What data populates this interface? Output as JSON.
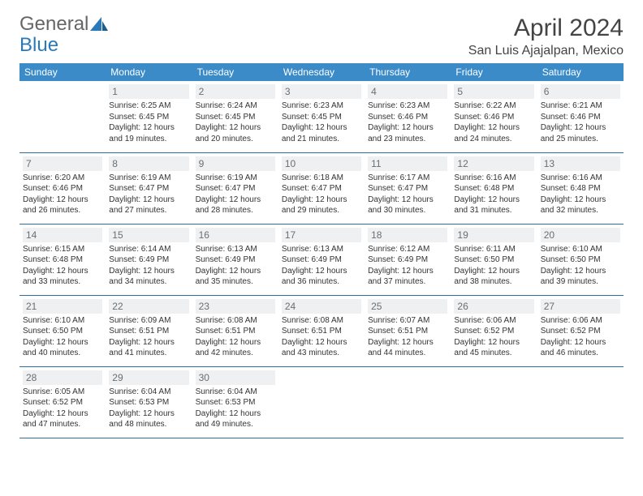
{
  "brand": {
    "part1": "General",
    "part2": "Blue"
  },
  "title": "April 2024",
  "location": "San Luis Ajajalpan, Mexico",
  "colors": {
    "header_bg": "#3b8bc9",
    "header_text": "#ffffff",
    "cell_border": "#2f6ea3",
    "daynum_bg": "#eef0f1",
    "daynum_text": "#6a6f73",
    "body_text": "#333333",
    "brand_gray": "#666666",
    "brand_blue": "#2a7ab9"
  },
  "weekdays": [
    "Sunday",
    "Monday",
    "Tuesday",
    "Wednesday",
    "Thursday",
    "Friday",
    "Saturday"
  ],
  "weeks": [
    [
      null,
      {
        "n": "1",
        "sr": "6:25 AM",
        "ss": "6:45 PM",
        "dl": "12 hours and 19 minutes."
      },
      {
        "n": "2",
        "sr": "6:24 AM",
        "ss": "6:45 PM",
        "dl": "12 hours and 20 minutes."
      },
      {
        "n": "3",
        "sr": "6:23 AM",
        "ss": "6:45 PM",
        "dl": "12 hours and 21 minutes."
      },
      {
        "n": "4",
        "sr": "6:23 AM",
        "ss": "6:46 PM",
        "dl": "12 hours and 23 minutes."
      },
      {
        "n": "5",
        "sr": "6:22 AM",
        "ss": "6:46 PM",
        "dl": "12 hours and 24 minutes."
      },
      {
        "n": "6",
        "sr": "6:21 AM",
        "ss": "6:46 PM",
        "dl": "12 hours and 25 minutes."
      }
    ],
    [
      {
        "n": "7",
        "sr": "6:20 AM",
        "ss": "6:46 PM",
        "dl": "12 hours and 26 minutes."
      },
      {
        "n": "8",
        "sr": "6:19 AM",
        "ss": "6:47 PM",
        "dl": "12 hours and 27 minutes."
      },
      {
        "n": "9",
        "sr": "6:19 AM",
        "ss": "6:47 PM",
        "dl": "12 hours and 28 minutes."
      },
      {
        "n": "10",
        "sr": "6:18 AM",
        "ss": "6:47 PM",
        "dl": "12 hours and 29 minutes."
      },
      {
        "n": "11",
        "sr": "6:17 AM",
        "ss": "6:47 PM",
        "dl": "12 hours and 30 minutes."
      },
      {
        "n": "12",
        "sr": "6:16 AM",
        "ss": "6:48 PM",
        "dl": "12 hours and 31 minutes."
      },
      {
        "n": "13",
        "sr": "6:16 AM",
        "ss": "6:48 PM",
        "dl": "12 hours and 32 minutes."
      }
    ],
    [
      {
        "n": "14",
        "sr": "6:15 AM",
        "ss": "6:48 PM",
        "dl": "12 hours and 33 minutes."
      },
      {
        "n": "15",
        "sr": "6:14 AM",
        "ss": "6:49 PM",
        "dl": "12 hours and 34 minutes."
      },
      {
        "n": "16",
        "sr": "6:13 AM",
        "ss": "6:49 PM",
        "dl": "12 hours and 35 minutes."
      },
      {
        "n": "17",
        "sr": "6:13 AM",
        "ss": "6:49 PM",
        "dl": "12 hours and 36 minutes."
      },
      {
        "n": "18",
        "sr": "6:12 AM",
        "ss": "6:49 PM",
        "dl": "12 hours and 37 minutes."
      },
      {
        "n": "19",
        "sr": "6:11 AM",
        "ss": "6:50 PM",
        "dl": "12 hours and 38 minutes."
      },
      {
        "n": "20",
        "sr": "6:10 AM",
        "ss": "6:50 PM",
        "dl": "12 hours and 39 minutes."
      }
    ],
    [
      {
        "n": "21",
        "sr": "6:10 AM",
        "ss": "6:50 PM",
        "dl": "12 hours and 40 minutes."
      },
      {
        "n": "22",
        "sr": "6:09 AM",
        "ss": "6:51 PM",
        "dl": "12 hours and 41 minutes."
      },
      {
        "n": "23",
        "sr": "6:08 AM",
        "ss": "6:51 PM",
        "dl": "12 hours and 42 minutes."
      },
      {
        "n": "24",
        "sr": "6:08 AM",
        "ss": "6:51 PM",
        "dl": "12 hours and 43 minutes."
      },
      {
        "n": "25",
        "sr": "6:07 AM",
        "ss": "6:51 PM",
        "dl": "12 hours and 44 minutes."
      },
      {
        "n": "26",
        "sr": "6:06 AM",
        "ss": "6:52 PM",
        "dl": "12 hours and 45 minutes."
      },
      {
        "n": "27",
        "sr": "6:06 AM",
        "ss": "6:52 PM",
        "dl": "12 hours and 46 minutes."
      }
    ],
    [
      {
        "n": "28",
        "sr": "6:05 AM",
        "ss": "6:52 PM",
        "dl": "12 hours and 47 minutes."
      },
      {
        "n": "29",
        "sr": "6:04 AM",
        "ss": "6:53 PM",
        "dl": "12 hours and 48 minutes."
      },
      {
        "n": "30",
        "sr": "6:04 AM",
        "ss": "6:53 PM",
        "dl": "12 hours and 49 minutes."
      },
      null,
      null,
      null,
      null
    ]
  ],
  "labels": {
    "sunrise": "Sunrise:",
    "sunset": "Sunset:",
    "daylight": "Daylight:"
  }
}
